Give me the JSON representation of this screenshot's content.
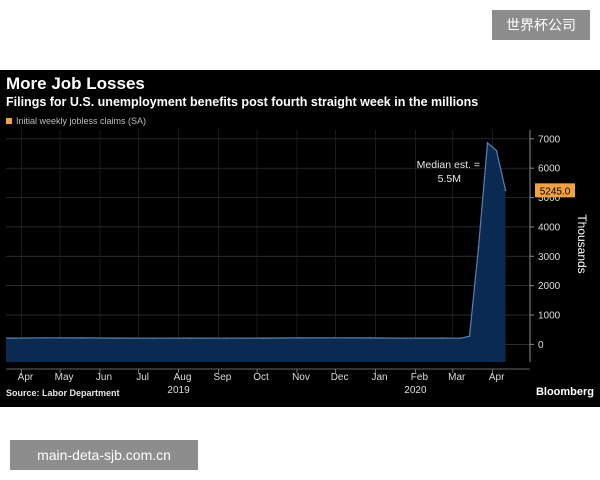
{
  "watermarks": {
    "top": "世界杯公司",
    "bottom": "main-deta-sjb.com.cn"
  },
  "title": "More Job Losses",
  "subtitle": "Filings for U.S. unemployment benefits post fourth straight week in the millions",
  "source": "Source: Labor Department",
  "brand": "Bloomberg",
  "annotation": {
    "line1": "Median est. =",
    "line2": "5.5M"
  },
  "last_value_label": "5245.0",
  "colors": {
    "area": "#0b2a52",
    "line": "#5b7fb0",
    "accent": "#f2a23a",
    "background": "#000000"
  },
  "chart_data": {
    "type": "area",
    "ylabel": "Thousands",
    "legend": "Initial weekly jobless claims (SA)",
    "ylim": [
      -600,
      7300
    ],
    "yticks": [
      0,
      1000,
      2000,
      3000,
      4000,
      5000,
      6000,
      7000
    ],
    "xlim": [
      "2019-03-20",
      "2020-04-30"
    ],
    "month_ticks": [
      {
        "label": "Apr",
        "date": "2019-04-01"
      },
      {
        "label": "May",
        "date": "2019-05-01"
      },
      {
        "label": "Jun",
        "date": "2019-06-01"
      },
      {
        "label": "Jul",
        "date": "2019-07-01"
      },
      {
        "label": "Aug",
        "date": "2019-08-01"
      },
      {
        "label": "Sep",
        "date": "2019-09-01"
      },
      {
        "label": "Oct",
        "date": "2019-10-01"
      },
      {
        "label": "Nov",
        "date": "2019-11-01"
      },
      {
        "label": "Dec",
        "date": "2019-12-01"
      },
      {
        "label": "Jan",
        "date": "2020-01-01"
      },
      {
        "label": "Feb",
        "date": "2020-02-01"
      },
      {
        "label": "Mar",
        "date": "2020-03-01"
      },
      {
        "label": "Apr",
        "date": "2020-04-01"
      }
    ],
    "year_labels": [
      {
        "label": "2019",
        "date": "2019-08-01"
      },
      {
        "label": "2020",
        "date": "2020-02-01"
      }
    ],
    "x": [
      "2019-03-23",
      "2019-04-20",
      "2019-05-18",
      "2019-06-15",
      "2019-07-13",
      "2019-08-10",
      "2019-09-07",
      "2019-10-05",
      "2019-11-02",
      "2019-11-30",
      "2019-12-28",
      "2020-01-25",
      "2020-02-22",
      "2020-03-07",
      "2020-03-14",
      "2020-03-21",
      "2020-03-28",
      "2020-04-04",
      "2020-04-11"
    ],
    "values": [
      215,
      225,
      220,
      215,
      210,
      215,
      210,
      215,
      220,
      225,
      220,
      210,
      215,
      210,
      280,
      3300,
      6860,
      6600,
      5245
    ]
  }
}
